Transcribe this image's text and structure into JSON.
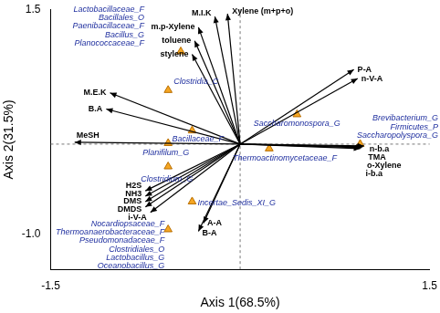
{
  "chart_data": {
    "type": "biplot",
    "x_label": "Axis 1(68.5%)",
    "y_label": "Axis 2(31.5%)",
    "xlim": [
      -1.5,
      1.5
    ],
    "xticks": [
      -1.5,
      1.5
    ],
    "ylim": [
      -1.4,
      1.5
    ],
    "yticks": [
      {
        "value": -1,
        "label": "-1.0"
      },
      1.5
    ],
    "grid": false,
    "arrows": {
      "color": "#000000",
      "items": [
        {
          "name": "Xylene (m+p+o)",
          "x": -0.1,
          "y": 1.45
        },
        {
          "name": "M.I.K",
          "x": -0.2,
          "y": 1.42
        },
        {
          "name": "m.p-Xylene",
          "x": -0.33,
          "y": 1.3
        },
        {
          "name": "toluene",
          "x": -0.36,
          "y": 1.15
        },
        {
          "name": "stylene",
          "x": -0.38,
          "y": 1.0
        },
        {
          "name": "M.E.K",
          "x": -1.03,
          "y": 0.57
        },
        {
          "name": "B.A",
          "x": -1.06,
          "y": 0.39
        },
        {
          "name": "MeSH",
          "x": -1.31,
          "y": 0.02
        },
        {
          "name": "P-A",
          "x": 0.9,
          "y": 0.83
        },
        {
          "name": "n-V-A",
          "x": 0.93,
          "y": 0.73
        },
        {
          "name": "n-b.a",
          "x": 0.98,
          "y": -0.02
        },
        {
          "name": "TMA",
          "x": 0.97,
          "y": -0.03
        },
        {
          "name": "o-Xylene",
          "x": 0.96,
          "y": -0.04
        },
        {
          "name": "i-b.a",
          "x": 0.95,
          "y": -0.05
        },
        {
          "name": "H2S",
          "x": -0.75,
          "y": -0.52
        },
        {
          "name": "NH3",
          "x": -0.75,
          "y": -0.58
        },
        {
          "name": "DMS",
          "x": -0.75,
          "y": -0.64
        },
        {
          "name": "DMDS",
          "x": -0.75,
          "y": -0.7
        },
        {
          "name": "i-V-A",
          "x": -0.71,
          "y": -0.76
        },
        {
          "name": "A-A",
          "x": -0.29,
          "y": -0.88
        },
        {
          "name": "B-A",
          "x": -0.33,
          "y": -0.97
        }
      ]
    },
    "points": {
      "color": "#f5a623",
      "marker": "triangle",
      "items": [
        {
          "labels": [
            "Lactobacillaceae_F",
            "Bacillales_O",
            "Paenibacillaceae_F",
            "Bacillus_G",
            "Planococcaceae_F"
          ],
          "x": -0.47,
          "y": 1.03
        },
        {
          "labels": [
            "Clostridia_C"
          ],
          "x": -0.57,
          "y": 0.6
        },
        {
          "labels": [
            "Bacillaceae_F"
          ],
          "x": -0.38,
          "y": 0.15
        },
        {
          "labels": [
            "Planifilum_G"
          ],
          "x": -0.57,
          "y": 0.01
        },
        {
          "labels": [
            "Clostridium_G"
          ],
          "x": -0.57,
          "y": -0.25
        },
        {
          "labels": [
            "Incertae_Sedis_XI_G"
          ],
          "x": -0.38,
          "y": -0.64
        },
        {
          "labels": [
            "Nocardiopsaceae_F",
            "Thermoanaerobacteraceae_F",
            "Pseudomonadaceae_F",
            "Clostridiales_O",
            "Lactobacillus_G",
            "Oceanobacillus_G"
          ],
          "x": -0.57,
          "y": -0.95
        },
        {
          "labels": [
            "Saccharomonospora_G"
          ],
          "x": 0.45,
          "y": 0.33
        },
        {
          "labels": [
            "Thermoactinomycetaceae_F"
          ],
          "x": 0.23,
          "y": -0.05
        },
        {
          "labels": [
            "Brevibacterium_G",
            "Firmicutes_P",
            "Saccharopolyspora_G"
          ],
          "x": 0.95,
          "y": 0.0
        }
      ]
    }
  }
}
